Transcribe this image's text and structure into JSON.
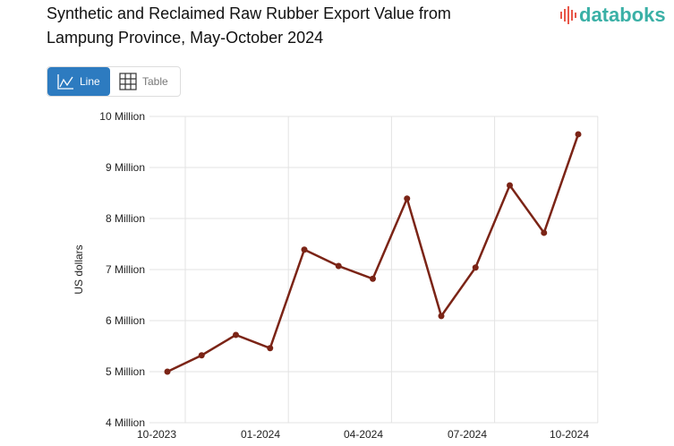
{
  "header": {
    "title_line1": "Synthetic and Reclaimed Raw Rubber Export Value from",
    "title_line2": "Lampung Province, May-October 2024",
    "logo": "databoks"
  },
  "toggle": {
    "line_label": "Line",
    "table_label": "Table"
  },
  "colors": {
    "line": "#7b2416",
    "accent": "#2d7bc0",
    "logo_text": "#3ab0a6",
    "logo_mark": "#e8584a"
  },
  "chart_data": {
    "type": "line",
    "title": "Synthetic and Reclaimed Raw Rubber Export Value from Lampung Province, May-October 2024",
    "ylabel": "US dollars",
    "xlabel": "",
    "x": [
      "10-2023",
      "11-2023",
      "12-2023",
      "01-2024",
      "02-2024",
      "03-2024",
      "04-2024",
      "05-2024",
      "06-2024",
      "07-2024",
      "08-2024",
      "09-2024",
      "10-2024"
    ],
    "values": [
      5.0,
      5.32,
      5.72,
      5.46,
      7.39,
      7.07,
      6.82,
      8.39,
      6.09,
      7.04,
      8.65,
      7.72,
      9.65
    ],
    "value_unit": "Million",
    "ylim": [
      4,
      10
    ],
    "yticks": [
      "4 Million",
      "5 Million",
      "6 Million",
      "7 Million",
      "8 Million",
      "9 Million",
      "10 Million"
    ],
    "xticks": [
      "10-2023",
      "01-2024",
      "04-2024",
      "07-2024",
      "10-2024"
    ],
    "grid": true
  }
}
